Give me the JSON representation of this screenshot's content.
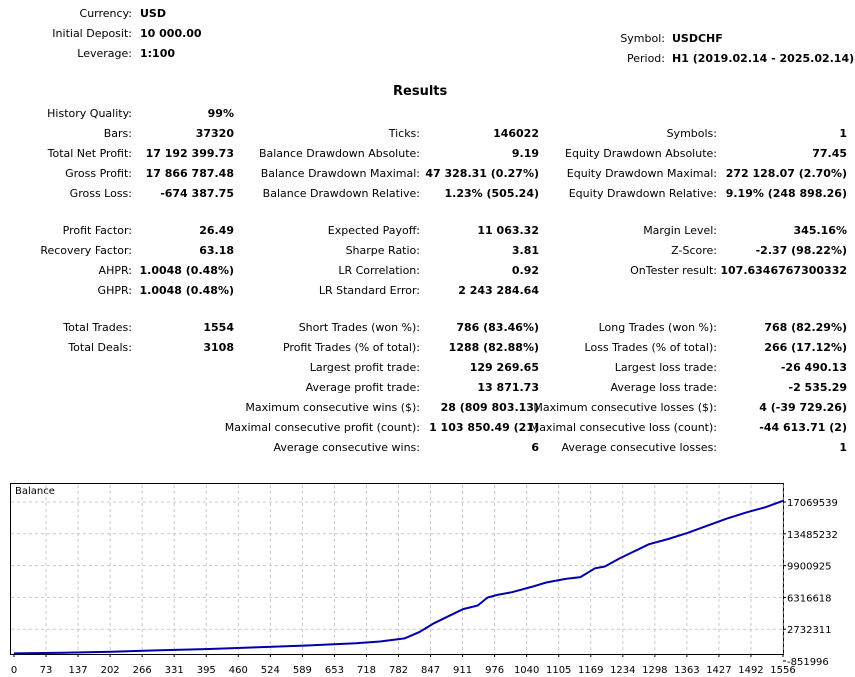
{
  "header": {
    "currency_label": "Currency:",
    "currency": "USD",
    "deposit_label": "Initial Deposit:",
    "deposit": "10 000.00",
    "leverage_label": "Leverage:",
    "leverage": "1:100",
    "symbol_label": "Symbol:",
    "symbol": "USDCHF",
    "period_label": "Period:",
    "period": "H1 (2019.02.14 - 2025.02.14)"
  },
  "results_title": "Results",
  "rows": [
    {
      "c1l": "History Quality:",
      "c1v": "99%",
      "c2l": "",
      "c2v": "",
      "c3l": "",
      "c3v": ""
    },
    {
      "c1l": "Bars:",
      "c1v": "37320",
      "c2l": "Ticks:",
      "c2v": "146022",
      "c3l": "Symbols:",
      "c3v": "1"
    },
    {
      "c1l": "Total Net Profit:",
      "c1v": "17 192 399.73",
      "c2l": "Balance Drawdown Absolute:",
      "c2v": "9.19",
      "c3l": "Equity Drawdown Absolute:",
      "c3v": "77.45"
    },
    {
      "c1l": "Gross Profit:",
      "c1v": "17 866 787.48",
      "c2l": "Balance Drawdown Maximal:",
      "c2v": "47 328.31 (0.27%)",
      "c3l": "Equity Drawdown Maximal:",
      "c3v": "272 128.07 (2.70%)"
    },
    {
      "c1l": "Gross Loss:",
      "c1v": "-674 387.75",
      "c2l": "Balance Drawdown Relative:",
      "c2v": "1.23% (505.24)",
      "c3l": "Equity Drawdown Relative:",
      "c3v": "9.19% (248 898.26)"
    },
    {
      "c1l": "Profit Factor:",
      "c1v": "26.49",
      "c2l": "Expected Payoff:",
      "c2v": "11 063.32",
      "c3l": "Margin Level:",
      "c3v": "345.16%"
    },
    {
      "c1l": "Recovery Factor:",
      "c1v": "63.18",
      "c2l": "Sharpe Ratio:",
      "c2v": "3.81",
      "c3l": "Z-Score:",
      "c3v": "-2.37 (98.22%)"
    },
    {
      "c1l": "AHPR:",
      "c1v": "1.0048 (0.48%)",
      "c2l": "LR Correlation:",
      "c2v": "0.92",
      "c3l": "OnTester result:",
      "c3v": "107.6346767300332"
    },
    {
      "c1l": "GHPR:",
      "c1v": "1.0048 (0.48%)",
      "c2l": "LR Standard Error:",
      "c2v": "2 243 284.64",
      "c3l": "",
      "c3v": ""
    },
    {
      "c1l": "Total Trades:",
      "c1v": "1554",
      "c2l": "Short Trades (won %):",
      "c2v": "786 (83.46%)",
      "c3l": "Long Trades (won %):",
      "c3v": "768 (82.29%)"
    },
    {
      "c1l": "Total Deals:",
      "c1v": "3108",
      "c2l": "Profit Trades (% of total):",
      "c2v": "1288 (82.88%)",
      "c3l": "Loss Trades (% of total):",
      "c3v": "266 (17.12%)"
    },
    {
      "c1l": "",
      "c1v": "",
      "c2l": "Largest profit trade:",
      "c2v": "129 269.65",
      "c3l": "Largest loss trade:",
      "c3v": "-26 490.13"
    },
    {
      "c1l": "",
      "c1v": "",
      "c2l": "Average profit trade:",
      "c2v": "13 871.73",
      "c3l": "Average loss trade:",
      "c3v": "-2 535.29"
    },
    {
      "c1l": "",
      "c1v": "",
      "c2l": "Maximum consecutive wins ($):",
      "c2v": "28 (809 803.13)",
      "c3l": "Maximum consecutive losses ($):",
      "c3v": "4 (-39 729.26)"
    },
    {
      "c1l": "",
      "c1v": "",
      "c2l": "Maximal consecutive profit (count):",
      "c2v": "1 103 850.49 (21)",
      "c3l": "Maximal consecutive loss (count):",
      "c3v": "-44 613.71 (2)"
    },
    {
      "c1l": "",
      "c1v": "",
      "c2l": "Average consecutive wins:",
      "c2v": "6",
      "c3l": "Average consecutive losses:",
      "c3v": "1"
    }
  ],
  "chart_data": {
    "type": "line",
    "title": "Balance",
    "series": [
      {
        "name": "Balance",
        "color": "#0000aa",
        "x": [
          0,
          100,
          200,
          300,
          400,
          500,
          600,
          700,
          750,
          800,
          830,
          860,
          890,
          920,
          950,
          970,
          990,
          1020,
          1060,
          1090,
          1130,
          1160,
          1190,
          1210,
          1240,
          1270,
          1300,
          1340,
          1380,
          1420,
          1460,
          1500,
          1540,
          1575
        ],
        "values": [
          10000,
          80000,
          200000,
          350000,
          500000,
          700000,
          900000,
          1150000,
          1350000,
          1700000,
          2400000,
          3400000,
          4200000,
          5000000,
          5400000,
          6300000,
          6600000,
          6900000,
          7500000,
          8000000,
          8400000,
          8600000,
          9600000,
          9800000,
          10700000,
          11500000,
          12300000,
          12900000,
          13600000,
          14400000,
          15200000,
          15900000,
          16500000,
          17200000
        ]
      }
    ],
    "x_ticks": [
      "0",
      "73",
      "137",
      "202",
      "266",
      "331",
      "395",
      "460",
      "524",
      "589",
      "653",
      "718",
      "782",
      "847",
      "911",
      "976",
      "1040",
      "1105",
      "1169",
      "1234",
      "1298",
      "1363",
      "1427",
      "1492",
      "1556"
    ],
    "y_ticks": [
      "17069539",
      "13485232",
      "9900925",
      "6316618",
      "2732311",
      "-851996"
    ],
    "xlim": [
      0,
      1575
    ],
    "ylim": [
      -851996,
      17900000
    ],
    "grid": true
  }
}
